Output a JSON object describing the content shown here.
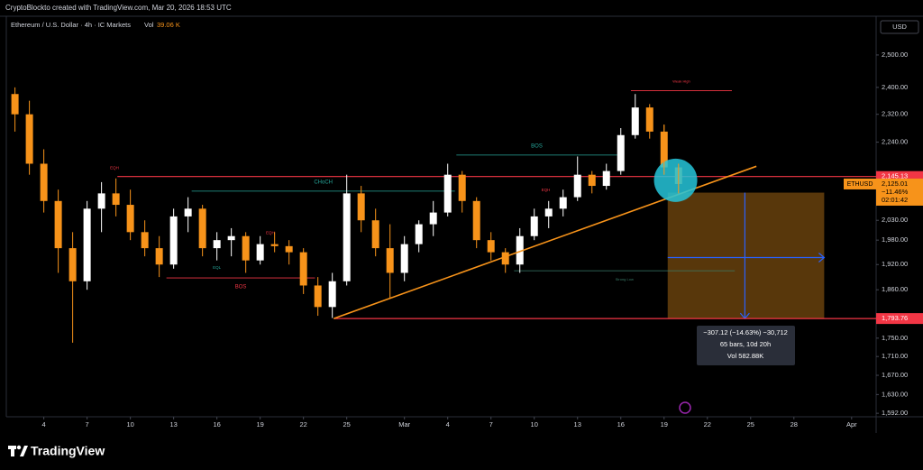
{
  "header": {
    "credit": "CryptoBlockto created with TradingView.com, Mar 20, 2026 18:53 UTC"
  },
  "footer": {
    "logo": "TradingView"
  },
  "chart_data": {
    "type": "candlestick",
    "title": "Ethereum / U.S. Dollar · 4h · IC Markets",
    "volume_label": "Vol",
    "volume_value": "39.06 K",
    "currency": "USD",
    "log_scale": true,
    "up_color": "#ffffff",
    "down_color": "#f7931a",
    "xlim": [
      1.4,
      61.7
    ],
    "ylim": [
      1585,
      2625
    ],
    "xticks": [
      4,
      7,
      10,
      13,
      16,
      19,
      22,
      25,
      {
        "value": 29,
        "label": "Mar"
      },
      {
        "value": 32,
        "label": "4"
      },
      {
        "value": 35,
        "label": "7"
      },
      {
        "value": 38,
        "label": "10"
      },
      {
        "value": 41,
        "label": "13"
      },
      {
        "value": 44,
        "label": "16"
      },
      {
        "value": 47,
        "label": "19"
      },
      {
        "value": 50,
        "label": "22"
      },
      {
        "value": 53,
        "label": "25"
      },
      {
        "value": 56,
        "label": "28"
      },
      {
        "value": 60,
        "label": "Apr"
      }
    ],
    "yticks": [
      {
        "value": 2500,
        "label": "2,500.00"
      },
      {
        "value": 2400,
        "label": "2,400.00"
      },
      {
        "value": 2320,
        "label": "2,320.00"
      },
      {
        "value": 2240,
        "label": "2,240.00"
      },
      {
        "value": 2030,
        "label": "2,030.00"
      },
      {
        "value": 1980,
        "label": "1,980.00"
      },
      {
        "value": 1920,
        "label": "1,920.00"
      },
      {
        "value": 1860,
        "label": "1,860.00"
      },
      {
        "value": 1750,
        "label": "1,750.00"
      },
      {
        "value": 1710,
        "label": "1,710.00"
      },
      {
        "value": 1670,
        "label": "1,670.00"
      },
      {
        "value": 1630,
        "label": "1,630.00"
      },
      {
        "value": 1592,
        "label": "1,592.00"
      }
    ],
    "candles": [
      [
        2,
        2380,
        2400,
        2270,
        2320
      ],
      [
        3,
        2320,
        2360,
        2150,
        2180
      ],
      [
        4,
        2180,
        2220,
        2050,
        2080
      ],
      [
        5,
        2080,
        2110,
        1900,
        1960
      ],
      [
        6,
        1960,
        2000,
        1740,
        1880
      ],
      [
        7,
        1880,
        2080,
        1860,
        2060
      ],
      [
        8,
        2060,
        2130,
        2000,
        2100
      ],
      [
        9,
        2100,
        2140,
        2040,
        2070
      ],
      [
        10,
        2070,
        2110,
        1980,
        2000
      ],
      [
        11,
        2000,
        2030,
        1940,
        1960
      ],
      [
        12,
        1960,
        1990,
        1890,
        1920
      ],
      [
        13,
        1920,
        2060,
        1910,
        2040
      ],
      [
        14,
        2040,
        2090,
        2000,
        2060
      ],
      [
        15,
        2060,
        2070,
        1940,
        1960
      ],
      [
        16,
        1960,
        2000,
        1930,
        1980
      ],
      [
        17,
        1980,
        2010,
        1940,
        1990
      ],
      [
        18,
        1990,
        2000,
        1900,
        1930
      ],
      [
        19,
        1930,
        1990,
        1920,
        1970
      ],
      [
        20,
        1970,
        2000,
        1950,
        1965
      ],
      [
        21,
        1965,
        1980,
        1920,
        1950
      ],
      [
        22,
        1950,
        1960,
        1850,
        1870
      ],
      [
        23,
        1870,
        1890,
        1800,
        1820
      ],
      [
        24,
        1820,
        1900,
        1795,
        1880
      ],
      [
        25,
        1880,
        2150,
        1870,
        2100
      ],
      [
        26,
        2100,
        2120,
        2000,
        2030
      ],
      [
        27,
        2030,
        2060,
        1940,
        1960
      ],
      [
        28,
        1960,
        2020,
        1840,
        1900
      ],
      [
        29,
        1900,
        1990,
        1880,
        1970
      ],
      [
        30,
        1970,
        2030,
        1950,
        2020
      ],
      [
        31,
        2020,
        2080,
        1990,
        2050
      ],
      [
        32,
        2050,
        2180,
        2040,
        2150
      ],
      [
        33,
        2150,
        2160,
        2050,
        2080
      ],
      [
        34,
        2080,
        2090,
        1960,
        1980
      ],
      [
        35,
        1980,
        2000,
        1930,
        1950
      ],
      [
        36,
        1950,
        1960,
        1900,
        1920
      ],
      [
        37,
        1920,
        2010,
        1900,
        1990
      ],
      [
        38,
        1990,
        2060,
        1980,
        2040
      ],
      [
        39,
        2040,
        2080,
        2010,
        2060
      ],
      [
        40,
        2060,
        2110,
        2040,
        2090
      ],
      [
        41,
        2090,
        2200,
        2080,
        2150
      ],
      [
        42,
        2150,
        2160,
        2100,
        2120
      ],
      [
        43,
        2120,
        2180,
        2110,
        2160
      ],
      [
        44,
        2160,
        2280,
        2150,
        2260
      ],
      [
        45,
        2260,
        2380,
        2250,
        2340
      ],
      [
        46,
        2340,
        2350,
        2250,
        2270
      ],
      [
        47,
        2270,
        2290,
        2150,
        2170
      ],
      [
        48,
        2170,
        2180,
        2100,
        2125.01
      ]
    ],
    "price_lines": [
      {
        "value": 2145.13,
        "label": "2,145.13",
        "from": 9.1,
        "color": "#f23645"
      },
      {
        "value": 1793.76,
        "label": "1,793.76",
        "from": 24.1,
        "color": "#f23645"
      }
    ],
    "current_price": {
      "value": 2125.01,
      "label": "2,125.01",
      "symbol": "ETHUSD",
      "change": "−11.46%",
      "countdown": "02:01:42",
      "color": "#f7931a"
    },
    "levels": [
      {
        "label": "CHoCH",
        "price": 2106,
        "from": 14.25,
        "to": 32.5,
        "color": "#26a69a",
        "label_pos": "above"
      },
      {
        "label": "BOS",
        "price": 2204,
        "from": 32.6,
        "to": 43.75,
        "color": "#26a69a",
        "label_pos": "above"
      },
      {
        "label": "BOS",
        "price": 1888,
        "from": 12.5,
        "to": 22.8,
        "color": "#f23645",
        "label_pos": "below"
      },
      {
        "label": "Weak High",
        "price": 2390,
        "from": 44.7,
        "to": 51.7,
        "color": "#f23645",
        "label_pos": "above"
      },
      {
        "label": "Strong Low",
        "price": 1905,
        "from": 36.6,
        "to": 51.9,
        "color": "#3a7d6a",
        "label_pos": "below"
      }
    ],
    "markers": [
      {
        "label": "EQH",
        "x": 8.9,
        "price": 2168,
        "color": "#f23645"
      },
      {
        "label": "EQH",
        "x": 19.7,
        "price": 1998,
        "color": "#f23645"
      },
      {
        "label": "EQH",
        "x": 38.8,
        "price": 2108,
        "color": "#f23645"
      },
      {
        "label": "EQL",
        "x": 16,
        "price": 1912,
        "color": "#26a69a"
      }
    ],
    "trendline": {
      "from": [
        24.1,
        1793.76
      ],
      "to": [
        53.4,
        2173
      ],
      "color": "#f7931a"
    },
    "highlight": {
      "x": 47.8,
      "price": 2135,
      "color": "#26c6da"
    },
    "projection": {
      "from": 47.25,
      "to": 58.1,
      "top": 2102,
      "bottom": 1793.76,
      "cross_x": 52.6,
      "cross_price": 1937,
      "color": "#2962ff"
    },
    "tooltip": [
      "−307.12 (−14.63%) −30,712",
      "65 bars, 10d 20h",
      "Vol 582.88K"
    ]
  }
}
